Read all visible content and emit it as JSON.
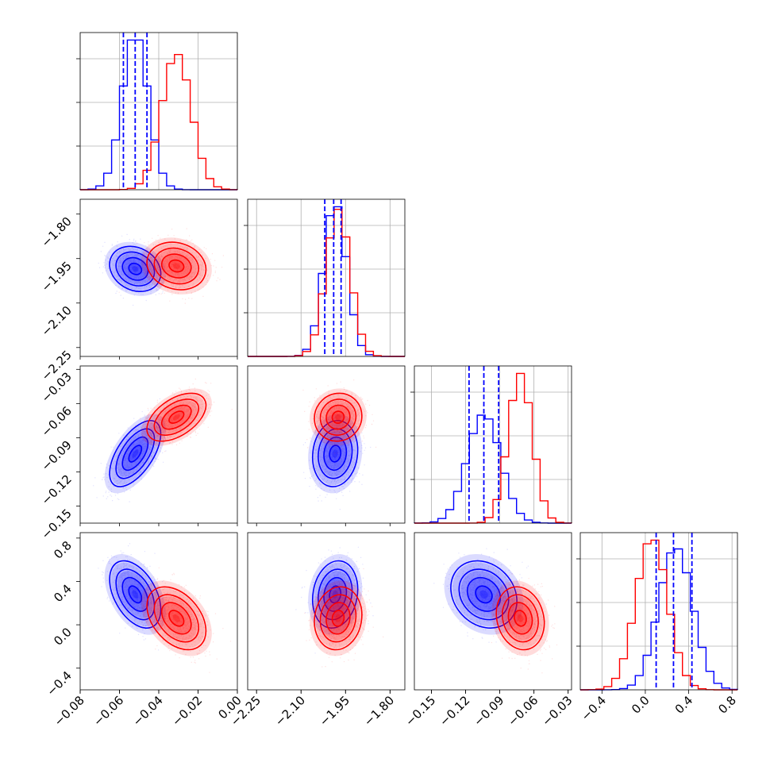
{
  "chart_data": {
    "type": "corner",
    "parameters": 4,
    "grid": true,
    "colors": {
      "series_a": "#0000ff",
      "series_b": "#ff0000",
      "quantile_line": "#0000ff"
    },
    "series": [
      {
        "color": "#0000ff",
        "mean": [
          -0.052,
          -1.985,
          -0.104,
          0.28
        ],
        "std": [
          0.0065,
          0.038,
          0.0145,
          0.155
        ],
        "quantiles": [
          [
            -0.058,
            -0.052,
            -0.046
          ],
          [
            -2.02,
            -1.99,
            -1.965
          ],
          [
            -0.117,
            -0.104,
            -0.091
          ],
          [
            0.1,
            0.26,
            0.43
          ]
        ]
      },
      {
        "color": "#ff0000",
        "mean": [
          -0.031,
          -1.975,
          -0.072,
          0.06
        ],
        "std": [
          0.0075,
          0.04,
          0.0105,
          0.145
        ]
      }
    ],
    "correlations": [
      {
        "pair": [
          0,
          1
        ],
        "series_a": -0.2,
        "series_b": -0.15
      },
      {
        "pair": [
          0,
          2
        ],
        "series_a": 0.6,
        "series_b": 0.5
      },
      {
        "pair": [
          0,
          3
        ],
        "series_a": -0.45,
        "series_b": -0.4
      },
      {
        "pair": [
          1,
          2
        ],
        "series_a": 0.1,
        "series_b": 0.05
      },
      {
        "pair": [
          1,
          3
        ],
        "series_a": 0.15,
        "series_b": 0.1
      },
      {
        "pair": [
          2,
          3
        ],
        "series_a": -0.2,
        "series_b": -0.15
      }
    ],
    "axes": [
      {
        "range": [
          -0.08,
          0.0
        ],
        "ticks": [
          -0.08,
          -0.06,
          -0.04,
          -0.02,
          0.0
        ],
        "tick_labels": [
          "−0.08",
          "−0.06",
          "−0.04",
          "−0.02",
          "0.00"
        ]
      },
      {
        "range": [
          -2.28,
          -1.75
        ],
        "ticks": [
          -2.25,
          -2.1,
          -1.95,
          -1.8
        ],
        "tick_labels": [
          "−2.25",
          "−2.10",
          "−1.95",
          "−1.80"
        ]
      },
      {
        "range": [
          -0.165,
          -0.027
        ],
        "ticks": [
          -0.15,
          -0.12,
          -0.09,
          -0.06,
          -0.03
        ],
        "tick_labels": [
          "−0.15",
          "−0.12",
          "−0.09",
          "−0.06",
          "−0.03"
        ]
      },
      {
        "range": [
          -0.6,
          0.85
        ],
        "ticks": [
          -0.4,
          0.0,
          0.4,
          0.8
        ],
        "tick_labels": [
          "−0.4",
          "0.0",
          "0.4",
          "0.8"
        ]
      }
    ]
  }
}
